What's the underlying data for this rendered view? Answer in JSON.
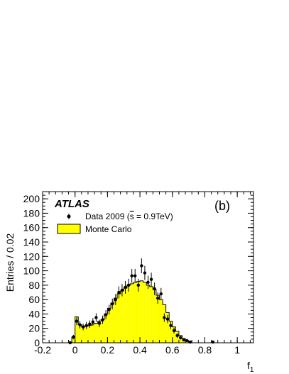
{
  "chart_data": {
    "type": "histogram",
    "xlabel": "f",
    "xlabel_sub": "1",
    "ylabel": "Entries / 0.02",
    "xlim": [
      -0.2,
      1.1
    ],
    "ylim": [
      0,
      210
    ],
    "x_ticks": [
      -0.2,
      0,
      0.2,
      0.4,
      0.6,
      0.8,
      1
    ],
    "x_tick_labels": [
      "-0.2",
      "0",
      "0.2",
      "0.4",
      "0.6",
      "0.8",
      "1"
    ],
    "y_ticks": [
      0,
      20,
      40,
      60,
      80,
      100,
      120,
      140,
      160,
      180,
      200
    ],
    "y_tick_labels": [
      "0",
      "20",
      "40",
      "60",
      "80",
      "100",
      "120",
      "140",
      "160",
      "180",
      "200"
    ],
    "experiment_label": "ATLAS",
    "panel_label": "(b)",
    "legend": {
      "placement": "top-left",
      "data_label": "Data 2009 (√s = 0.9TeV)",
      "data_label_main": "Data 2009 (",
      "data_label_sqrt": "s",
      "data_label_rest": " = 0.9TeV)",
      "mc_label": "Monte Carlo"
    },
    "colors": {
      "mc_fill": "#ffff00",
      "line": "#000000"
    },
    "bin_width": 0.02,
    "mc": {
      "name": "Monte Carlo",
      "bin_low": [
        -0.04,
        -0.02,
        0.0,
        0.02,
        0.04,
        0.06,
        0.08,
        0.1,
        0.12,
        0.14,
        0.16,
        0.18,
        0.2,
        0.22,
        0.24,
        0.26,
        0.28,
        0.3,
        0.32,
        0.34,
        0.36,
        0.38,
        0.4,
        0.42,
        0.44,
        0.46,
        0.48,
        0.5,
        0.52,
        0.54,
        0.56,
        0.58,
        0.6,
        0.62,
        0.64,
        0.66,
        0.68,
        0.7,
        0.72
      ],
      "values": [
        1,
        8,
        36,
        25,
        22,
        23,
        24,
        26,
        27,
        30,
        32,
        40,
        48,
        55,
        62,
        68,
        72,
        76,
        80,
        82,
        84,
        85,
        86,
        84,
        80,
        78,
        74,
        66,
        60,
        53,
        42,
        30,
        22,
        16,
        10,
        6,
        3,
        1,
        0
      ]
    },
    "data_points": {
      "name": "Data 2009",
      "x": [
        -0.03,
        -0.01,
        0.01,
        0.03,
        0.05,
        0.07,
        0.09,
        0.11,
        0.13,
        0.15,
        0.17,
        0.19,
        0.21,
        0.23,
        0.25,
        0.27,
        0.29,
        0.31,
        0.33,
        0.35,
        0.37,
        0.39,
        0.41,
        0.43,
        0.45,
        0.47,
        0.49,
        0.51,
        0.53,
        0.55,
        0.57,
        0.59,
        0.61,
        0.63,
        0.65,
        0.67,
        0.69,
        0.71,
        0.85
      ],
      "y": [
        0,
        8,
        30,
        25,
        22,
        24,
        26,
        29,
        35,
        27,
        32,
        39,
        46,
        54,
        60,
        70,
        73,
        77,
        80,
        93,
        93,
        80,
        107,
        97,
        84,
        88,
        75,
        62,
        68,
        35,
        33,
        24,
        17,
        10,
        7,
        4,
        3,
        1,
        1
      ],
      "err": [
        0,
        3,
        5.5,
        5,
        4.7,
        4.9,
        5.1,
        5.4,
        5.9,
        5.2,
        5.7,
        6.2,
        6.8,
        7.3,
        7.7,
        8.4,
        8.5,
        8.8,
        8.9,
        9.6,
        9.6,
        8.9,
        10.3,
        9.8,
        9.2,
        9.4,
        8.7,
        7.9,
        8.2,
        5.9,
        5.7,
        4.9,
        4.1,
        3.2,
        2.6,
        2,
        1.7,
        1,
        1
      ]
    }
  }
}
